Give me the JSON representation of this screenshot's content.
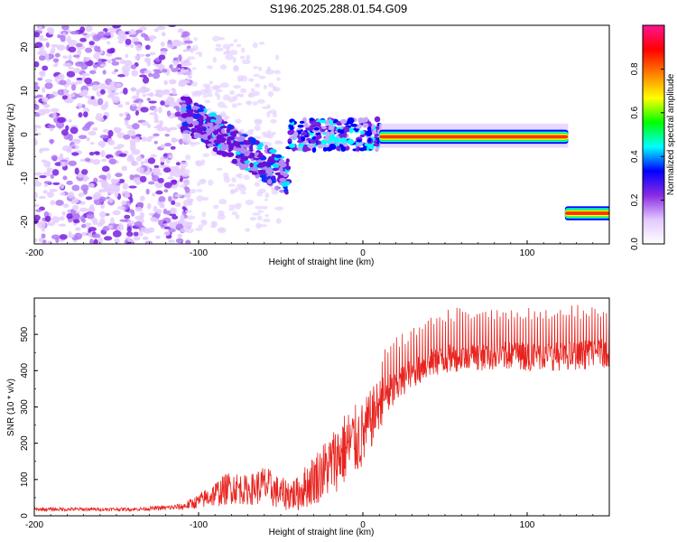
{
  "title": "S196.2025.288.01.54.G09",
  "colors": {
    "snr_line": "#e8231e",
    "colormap": [
      "#ffffff",
      "#e6ccff",
      "#8a2be2",
      "#0000ff",
      "#00ffff",
      "#00ff00",
      "#ffff00",
      "#ff8000",
      "#ff0000",
      "#ff1493"
    ]
  },
  "chart_data": [
    {
      "type": "heatmap",
      "name": "spectrogram",
      "xlabel": "Height of straight line (km)",
      "ylabel": "Frequency (Hz)",
      "xlim": [
        -200,
        150
      ],
      "ylim": [
        -25,
        25
      ],
      "xticks": [
        -200,
        -100,
        0,
        100
      ],
      "xtick_labels": [
        "-200",
        "-100",
        "0",
        "100"
      ],
      "yticks": [
        -20,
        -10,
        0,
        10,
        20
      ],
      "ytick_labels": [
        "-20",
        "-10",
        "0",
        "10",
        "20"
      ],
      "colorbar": {
        "label": "Normalized spectral amplitude",
        "range": [
          0,
          1
        ],
        "ticks": [
          0,
          0.2,
          0.4,
          0.6,
          0.8
        ],
        "tick_labels": [
          "0.0",
          "0.2",
          "0.4",
          "0.6",
          "0.8"
        ]
      },
      "ridges": [
        {
          "name": "main-tone",
          "x": [
            10,
            125
          ],
          "y": -0.5,
          "amplitude": 0.95
        },
        {
          "name": "lower-tone",
          "x": [
            123,
            150
          ],
          "y": -18,
          "amplitude": 0.95
        },
        {
          "name": "transition-tone",
          "x": [
            -45,
            10
          ],
          "y": 0,
          "amplitude": 0.6
        },
        {
          "name": "descending-branch",
          "x": [
            -110,
            -45
          ],
          "y_start": 5,
          "y_end": -10,
          "amplitude": 0.4
        }
      ],
      "noise_region": {
        "x": [
          -200,
          -110
        ],
        "amplitude": 0.15
      }
    },
    {
      "type": "line",
      "name": "snr",
      "xlabel": "Height of straight line (km)",
      "ylabel": "SNR (10 * v/v)",
      "xlim": [
        -200,
        150
      ],
      "ylim": [
        0,
        600
      ],
      "xticks": [
        -200,
        -100,
        0,
        100
      ],
      "xtick_labels": [
        "-200",
        "-100",
        "0",
        "100"
      ],
      "yticks": [
        0,
        100,
        200,
        300,
        400,
        500
      ],
      "ytick_labels": [
        "0",
        "100",
        "200",
        "300",
        "400",
        "500"
      ],
      "series": [
        {
          "name": "SNR",
          "x": [
            -200,
            -180,
            -160,
            -140,
            -120,
            -110,
            -100,
            -90,
            -80,
            -70,
            -60,
            -50,
            -40,
            -30,
            -20,
            -10,
            0,
            10,
            20,
            30,
            40,
            60,
            80,
            100,
            120,
            140,
            150
          ],
          "y": [
            18,
            18,
            18,
            18,
            22,
            25,
            40,
            60,
            80,
            70,
            85,
            60,
            60,
            100,
            140,
            190,
            220,
            310,
            350,
            390,
            420,
            440,
            440,
            440,
            440,
            445,
            450
          ],
          "spread": [
            6,
            6,
            6,
            6,
            8,
            12,
            25,
            45,
            60,
            50,
            70,
            55,
            60,
            90,
            110,
            130,
            120,
            90,
            60,
            60,
            50,
            50,
            50,
            50,
            50,
            50,
            50
          ]
        }
      ]
    }
  ]
}
